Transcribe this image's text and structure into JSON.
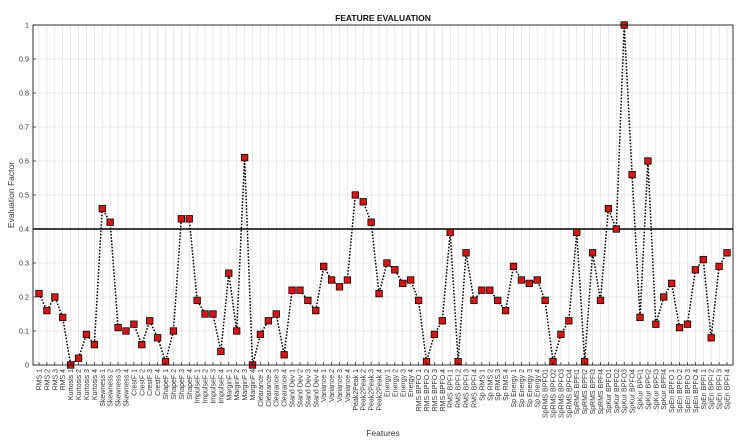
{
  "chart_data": {
    "type": "line",
    "title": "FEATURE EVALUATION",
    "xlabel": "Features",
    "ylabel": "Evaluation Factor",
    "ylim": [
      0,
      1
    ],
    "yticks": [
      0,
      0.1,
      0.2,
      0.3,
      0.4,
      0.5,
      0.6,
      0.7,
      0.8,
      0.9,
      1
    ],
    "grid": true,
    "threshold": 0.4,
    "colors": {
      "line": "#000000",
      "marker_fill": "#cc1a1a",
      "marker_edge": "#1a0000",
      "threshold": "#000000",
      "grid": "#dcdcdc"
    },
    "categories": [
      "RMS 1",
      "RMS 2",
      "RMS 3",
      "RMS 4",
      "Kurtosis 1",
      "Kurtosis 2",
      "Kurtosis 3",
      "Kurtosis 4",
      "Skewness 1",
      "Skewness 2",
      "Skewness 3",
      "Skewness 4",
      "CrestF 1",
      "CrestF 2",
      "CrestF 3",
      "CrestF 4",
      "ShapeF 1",
      "ShapeF 2",
      "ShapeF 3",
      "ShapeF 4",
      "ImpulseF 1",
      "ImpulseF 2",
      "ImpulseF 3",
      "ImpulseF 4",
      "MarginF 1",
      "MarginF 2",
      "MarginF 3",
      "MarginF 4",
      "Clearance 1",
      "Clearance 2",
      "Clearance 3",
      "Clearance 4",
      "Stand Dev 1",
      "Stand Dev 2",
      "Stand Dev 3",
      "Stand Dev 4",
      "Variance 1",
      "Variance 2",
      "Variance 3",
      "Variance 4",
      "Peak2Peak 1",
      "Peak2Peak 2",
      "Peak2Peak 3",
      "Peak2Peak 4",
      "Energy 1",
      "Energy 2",
      "Energy 3",
      "Energy 4",
      "RMS BPFO 1",
      "RMS BPFO 2",
      "RMS BPFO 3",
      "RMS BPFO 4",
      "RMS BPFI 1",
      "RMS BPFI 2",
      "RMS BPFI 3",
      "RMS BPFI 4",
      "Sp RMS 1",
      "Sp RMS 2",
      "Sp RMS 3",
      "Sp RMS 4",
      "Sp Energy 1",
      "Sp Energy 2",
      "Sp Energy 3",
      "Sp Energy 4",
      "SpRMS BPFO1",
      "SpRMS BPFO2",
      "SpRMS BPFO3",
      "SpRMS BPFO4",
      "SpRMS BPFI1",
      "SpRMS BPFI2",
      "SpRMS BPFI3",
      "SpRMS BPFI4",
      "SpKur BPFO1",
      "SpKur BPFO2",
      "SpKur BPFO3",
      "SpKur BPFO4",
      "SpKur BPFI1",
      "SpKur BPFI2",
      "SpKur BPFI3",
      "SpKur BPFI4",
      "SpEn BPFO 1",
      "SpEn BPFO 2",
      "SpEn BPFO 3",
      "SpEn BPFO 4",
      "SpEn BPFI 1",
      "SpEn BPFI 2",
      "SpEn BPFI 3",
      "SpEn BPFI 4"
    ],
    "values": [
      0.21,
      0.16,
      0.2,
      0.14,
      0.0,
      0.02,
      0.09,
      0.06,
      0.46,
      0.42,
      0.11,
      0.1,
      0.12,
      0.06,
      0.13,
      0.08,
      0.01,
      0.1,
      0.43,
      0.43,
      0.19,
      0.15,
      0.15,
      0.04,
      0.27,
      0.1,
      0.61,
      0.0,
      0.09,
      0.13,
      0.15,
      0.03,
      0.22,
      0.22,
      0.19,
      0.16,
      0.29,
      0.25,
      0.23,
      0.25,
      0.5,
      0.48,
      0.42,
      0.21,
      0.3,
      0.28,
      0.24,
      0.25,
      0.19,
      0.01,
      0.09,
      0.13,
      0.39,
      0.01,
      0.33,
      0.19,
      0.22,
      0.22,
      0.19,
      0.16,
      0.29,
      0.25,
      0.24,
      0.25,
      0.19,
      0.01,
      0.09,
      0.13,
      0.39,
      0.01,
      0.33,
      0.19,
      0.46,
      0.4,
      1.0,
      0.56,
      0.14,
      0.6,
      0.12,
      0.2,
      0.24,
      0.11,
      0.12,
      0.28,
      0.31,
      0.08,
      0.29,
      0.33
    ]
  }
}
